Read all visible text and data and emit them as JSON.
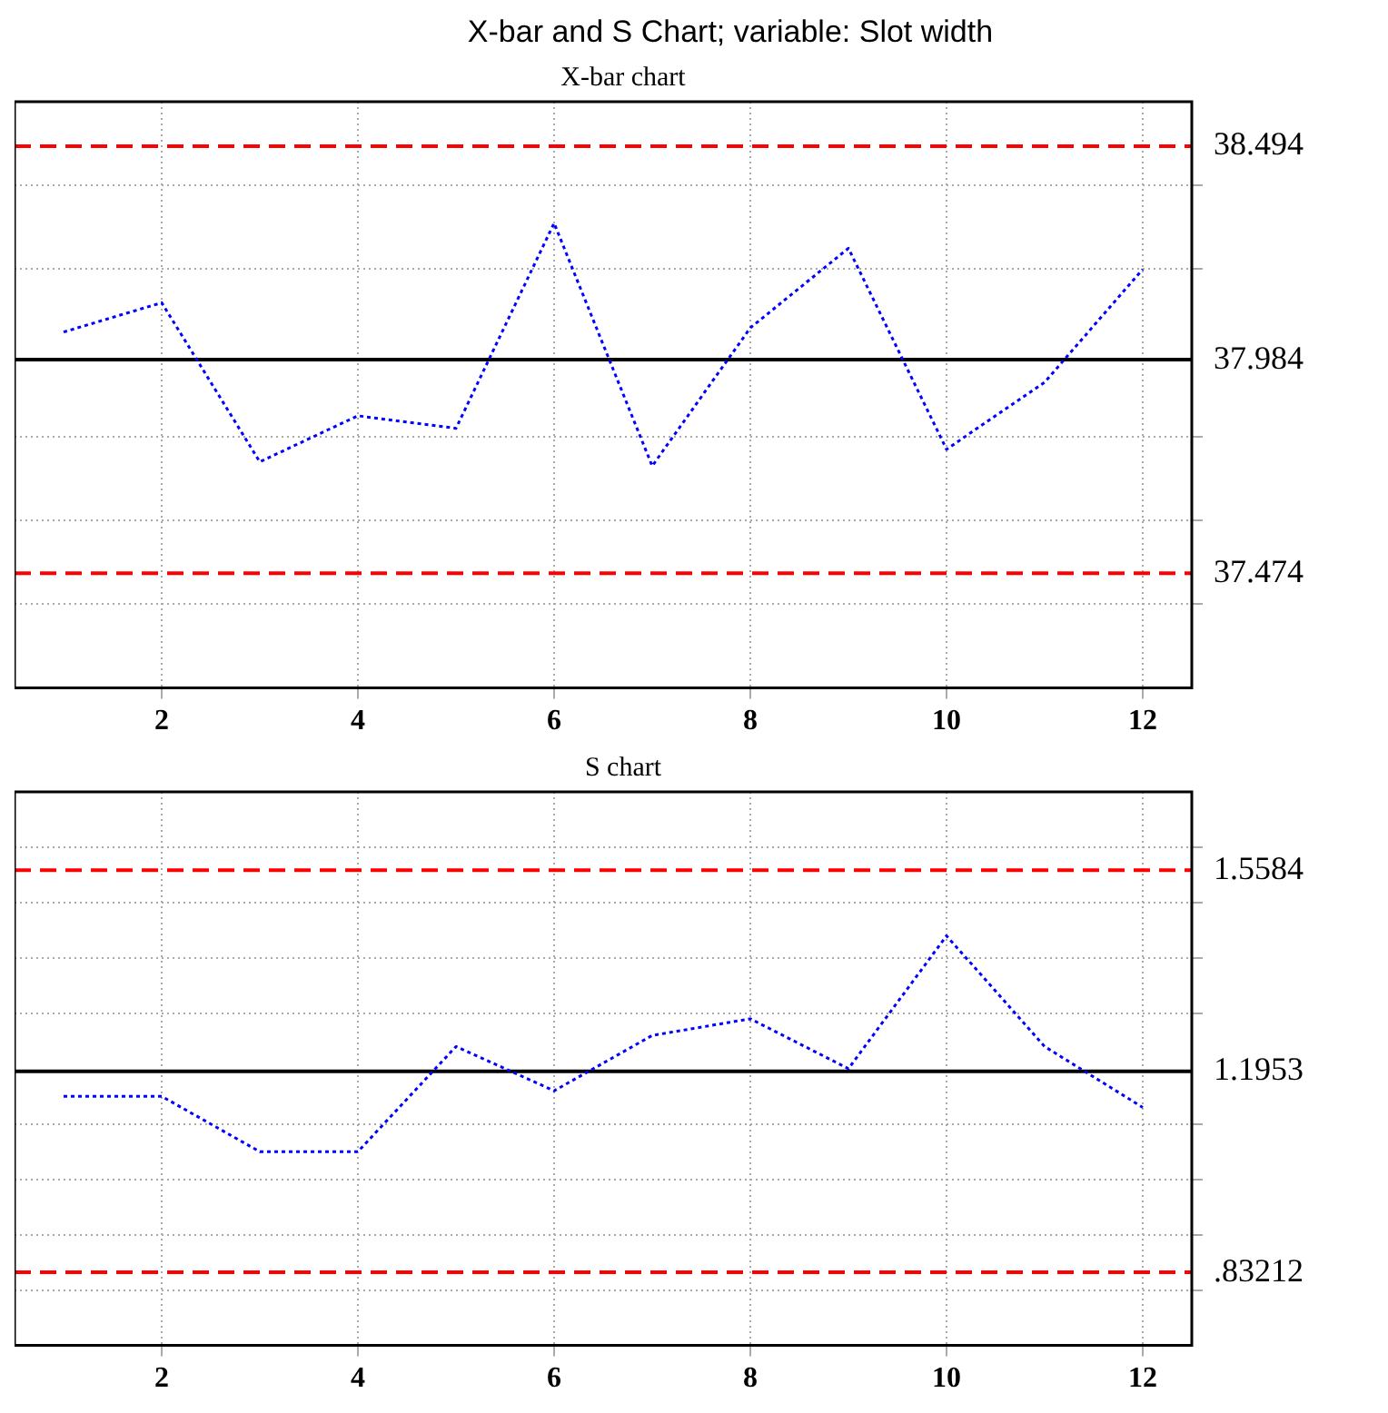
{
  "chart_data": [
    {
      "type": "line",
      "title": "X-bar and S Chart; variable:  Slot width",
      "subtitle": "X-bar chart",
      "x": [
        1,
        2,
        3,
        4,
        5,
        6,
        7,
        8,
        9,
        10,
        11,
        12
      ],
      "series": [
        {
          "color": "#0000ff",
          "values": [
            38.05,
            38.12,
            37.74,
            37.85,
            37.82,
            38.31,
            37.73,
            38.06,
            38.25,
            37.77,
            37.93,
            38.2
          ]
        }
      ],
      "xlim": [
        0.5,
        12.5
      ],
      "xticks": [
        2,
        4,
        6,
        8,
        10,
        12
      ],
      "ylim": [
        37.2,
        38.6
      ],
      "yticks": [
        {
          "value": 37.4,
          "label": null
        },
        {
          "value": 37.6,
          "label": null
        },
        {
          "value": 37.8,
          "label": null
        },
        {
          "value": 38.2,
          "label": null
        },
        {
          "value": 38.4,
          "label": null
        }
      ],
      "ref_lines": [
        {
          "axis": "y",
          "value": 38.494,
          "label": "38.494",
          "color": "#ff0000",
          "line_style": "dashed"
        },
        {
          "axis": "y",
          "value": 37.984,
          "label": "37.984",
          "color": "#000000",
          "line_style": "solid"
        },
        {
          "axis": "y",
          "value": 37.474,
          "label": "37.474",
          "color": "#ff0000",
          "line_style": "dashed"
        }
      ],
      "grid": true,
      "marker": "none",
      "line_style": "dotted"
    },
    {
      "type": "line",
      "title": "S chart",
      "x": [
        1,
        2,
        3,
        4,
        5,
        6,
        7,
        8,
        9,
        10,
        11,
        12
      ],
      "series": [
        {
          "color": "#0000ff",
          "values": [
            1.15,
            1.15,
            1.05,
            1.05,
            1.24,
            1.16,
            1.26,
            1.29,
            1.2,
            1.44,
            1.24,
            1.13
          ]
        }
      ],
      "xlim": [
        0.5,
        12.5
      ],
      "xticks": [
        2,
        4,
        6,
        8,
        10,
        12
      ],
      "ylim": [
        0.7,
        1.7
      ],
      "yticks": [
        {
          "value": 0.8,
          "label": null
        },
        {
          "value": 0.9,
          "label": null
        },
        {
          "value": 1.0,
          "label": null
        },
        {
          "value": 1.1,
          "label": null
        },
        {
          "value": 1.3,
          "label": null
        },
        {
          "value": 1.4,
          "label": null
        },
        {
          "value": 1.5,
          "label": null
        },
        {
          "value": 1.6,
          "label": null
        }
      ],
      "ref_lines": [
        {
          "axis": "y",
          "value": 1.5584,
          "label": "1.5584",
          "color": "#ff0000",
          "line_style": "dashed"
        },
        {
          "axis": "y",
          "value": 1.1953,
          "label": "1.1953",
          "color": "#000000",
          "line_style": "solid"
        },
        {
          "axis": "y",
          "value": 0.83212,
          "label": ".83212",
          "color": "#ff0000",
          "line_style": "dashed"
        }
      ],
      "grid": true,
      "marker": "none",
      "line_style": "dotted"
    }
  ]
}
